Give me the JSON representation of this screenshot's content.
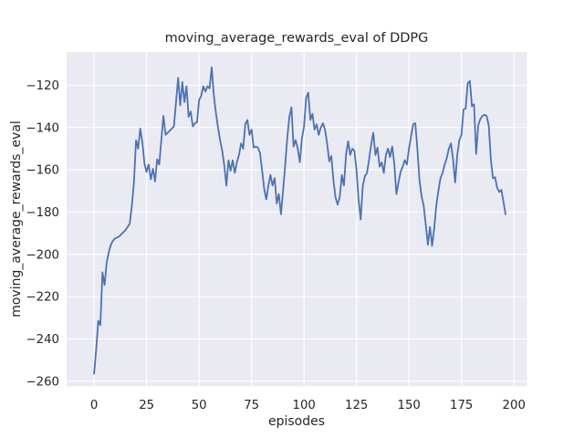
{
  "figure": {
    "title": "moving_average_rewards_eval of DDPG",
    "xlabel": "episodes",
    "ylabel": "moving_average_rewards_eval"
  },
  "chart_data": {
    "type": "line",
    "title": "moving_average_rewards_eval of DDPG",
    "xlabel": "episodes",
    "ylabel": "moving_average_rewards_eval",
    "style": "seaborn-darkgrid",
    "grid": true,
    "legend_position": "none",
    "plot_bg_color": "#eaeaf2",
    "grid_color": "#ffffff",
    "line_color": "#4c72b0",
    "text_color": "#262626",
    "x_ticks": [
      0,
      25,
      50,
      75,
      100,
      125,
      150,
      175,
      200
    ],
    "y_ticks": [
      -120,
      -140,
      -160,
      -180,
      -200,
      -220,
      -240,
      -260
    ],
    "xlim": [
      -13.1,
      206.2
    ],
    "ylim": [
      -262.4,
      -104.3
    ],
    "series": [
      {
        "name": "moving_average_rewards_eval",
        "x_start": 0,
        "x_step": 1,
        "values": [
          -256.5,
          -245,
          -231.5,
          -233.5,
          -208.5,
          -214.5,
          -204,
          -199,
          -195.5,
          -193.5,
          -192.5,
          -192,
          -191.5,
          -190.5,
          -189.5,
          -188.5,
          -187,
          -185.5,
          -177,
          -166,
          -146,
          -150,
          -140.5,
          -147,
          -157,
          -161,
          -157.5,
          -164.5,
          -159.5,
          -165.5,
          -155,
          -157.5,
          -146,
          -134.5,
          -143.5,
          -142.5,
          -141.5,
          -140.5,
          -139.5,
          -128,
          -116.5,
          -129.5,
          -118.5,
          -128,
          -120.5,
          -135,
          -132.5,
          -139.5,
          -138,
          -137.5,
          -127,
          -125,
          -120.5,
          -123,
          -120.5,
          -121.5,
          -111.5,
          -124.5,
          -133,
          -140,
          -146,
          -151,
          -158,
          -167.5,
          -155.5,
          -160.5,
          -155.5,
          -161.5,
          -156.5,
          -153,
          -147.5,
          -150,
          -138.5,
          -136.5,
          -143.5,
          -141,
          -149.5,
          -149,
          -149.5,
          -152,
          -160,
          -169,
          -174,
          -167.5,
          -162.5,
          -167.5,
          -164,
          -176,
          -171.5,
          -181,
          -170,
          -158,
          -145,
          -135,
          -130.5,
          -149,
          -146,
          -150,
          -156.5,
          -145,
          -139.5,
          -126,
          -123.5,
          -136.5,
          -133.5,
          -141,
          -138.5,
          -143.5,
          -140,
          -138,
          -141,
          -147.5,
          -156,
          -153.5,
          -165,
          -173,
          -176.5,
          -173,
          -162.5,
          -167.5,
          -153,
          -146.5,
          -153,
          -150,
          -151,
          -160,
          -174.5,
          -183.5,
          -167.5,
          -163,
          -161.5,
          -155,
          -148,
          -142.5,
          -153,
          -149.5,
          -158.5,
          -156.5,
          -161.5,
          -153,
          -150,
          -154,
          -149,
          -157,
          -171.5,
          -166,
          -161,
          -158.5,
          -155.5,
          -157.5,
          -150,
          -144,
          -138.5,
          -138,
          -150,
          -165,
          -172.5,
          -177,
          -186,
          -195.5,
          -187,
          -196,
          -188,
          -177,
          -170,
          -164,
          -161.5,
          -157.5,
          -154.5,
          -150,
          -147.5,
          -155,
          -166,
          -153,
          -146,
          -143.5,
          -131.5,
          -131,
          -119,
          -118,
          -130,
          -129,
          -152.5,
          -139,
          -136,
          -134.5,
          -134,
          -134.5,
          -139,
          -155,
          -164,
          -163.5,
          -168.5,
          -170.5,
          -169.5,
          -175,
          -181
        ]
      }
    ]
  }
}
